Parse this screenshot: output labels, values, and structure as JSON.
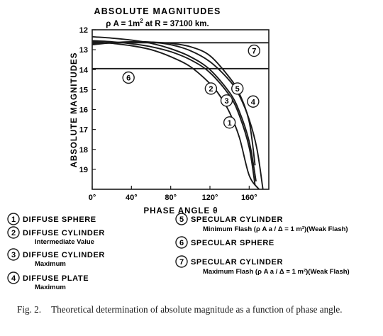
{
  "chart_data": {
    "type": "line",
    "title": "ABSOLUTE MAGNITUDES",
    "subtitle_parts": [
      "ρ A = 1m",
      "2",
      " at R = 37100 km."
    ],
    "xlabel": "PHASE ANGLE θ",
    "ylabel": "ABSOLUTE MAGNITUDES",
    "xlim": [
      0,
      180
    ],
    "ylim": [
      12,
      20
    ],
    "y_inverted": true,
    "x_ticks": [
      "0°",
      "40°",
      "80°",
      "120°",
      "160°"
    ],
    "x_tick_values": [
      0,
      40,
      80,
      120,
      160
    ],
    "y_ticks": [
      "12",
      "13",
      "14",
      "15",
      "16",
      "17",
      "18",
      "19"
    ],
    "y_tick_values": [
      12,
      13,
      14,
      15,
      16,
      17,
      18,
      19
    ],
    "series": [
      {
        "id": "1",
        "x": [
          0,
          20,
          40,
          60,
          80,
          100,
          120,
          130,
          140,
          150,
          160,
          170
        ],
        "y": [
          12.6,
          12.68,
          12.8,
          13.0,
          13.35,
          13.85,
          14.7,
          15.3,
          16.15,
          17.4,
          19.3,
          20.0
        ]
      },
      {
        "id": "2",
        "x": [
          0,
          20,
          40,
          60,
          80,
          100,
          120,
          140,
          150,
          160,
          166
        ],
        "y": [
          12.55,
          12.6,
          12.7,
          12.85,
          13.1,
          13.5,
          14.15,
          15.3,
          16.3,
          17.9,
          19.8
        ]
      },
      {
        "id": "3",
        "x": [
          0,
          20,
          40,
          60,
          80,
          100,
          120,
          140,
          150,
          160,
          167
        ],
        "y": [
          12.35,
          12.42,
          12.52,
          12.68,
          12.95,
          13.35,
          14.0,
          15.15,
          16.1,
          17.6,
          19.6
        ]
      },
      {
        "id": "4",
        "x": [
          0,
          20,
          40,
          60,
          80,
          100,
          120,
          140,
          150,
          160,
          168,
          174
        ],
        "y": [
          12.75,
          12.65,
          12.6,
          12.62,
          12.75,
          13.05,
          13.6,
          14.55,
          15.3,
          16.5,
          18.0,
          20.0
        ]
      },
      {
        "id": "5",
        "x": [
          0,
          20,
          40,
          60,
          80,
          100,
          120,
          140,
          150,
          160,
          166
        ],
        "y": [
          12.7,
          12.66,
          12.62,
          12.62,
          12.68,
          12.85,
          13.3,
          14.4,
          15.2,
          16.6,
          18.8
        ]
      },
      {
        "id": "6",
        "x": [
          0,
          180
        ],
        "y": [
          13.95,
          13.95
        ]
      },
      {
        "id": "7",
        "x": [
          0,
          180
        ],
        "y": [
          12.65,
          12.65
        ]
      }
    ],
    "curve_labels": [
      {
        "text": "1",
        "x": 140,
        "y": 16.65
      },
      {
        "text": "2",
        "x": 121,
        "y": 14.95
      },
      {
        "text": "3",
        "x": 137,
        "y": 15.55
      },
      {
        "text": "4",
        "x": 164,
        "y": 15.6
      },
      {
        "text": "5",
        "x": 148,
        "y": 14.95
      },
      {
        "text": "6",
        "x": 37,
        "y": 14.4
      },
      {
        "text": "7",
        "x": 165,
        "y": 13.05
      }
    ]
  },
  "legend_left": [
    {
      "num": "1",
      "lines": [
        "DIFFUSE SPHERE"
      ]
    },
    {
      "num": "2",
      "lines": [
        "DIFFUSE CYLINDER",
        "Intermediate Value"
      ]
    },
    {
      "num": "3",
      "lines": [
        "DIFFUSE CYLINDER",
        "Maximum"
      ]
    },
    {
      "num": "4",
      "lines": [
        "DIFFUSE PLATE",
        "Maximum"
      ]
    }
  ],
  "legend_right": [
    {
      "num": "5",
      "lines": [
        "SPECULAR CYLINDER",
        "Minimum Flash (ρ A a / Δ = 1 m²)(Weak Flash)"
      ]
    },
    {
      "num": "6",
      "lines": [
        "SPECULAR SPHERE"
      ]
    },
    {
      "num": "7",
      "lines": [
        "SPECULAR CYLINDER",
        "Maximum Flash (ρ A a / Δ = 1 m²)(Weak Flash)"
      ]
    }
  ],
  "caption": {
    "label": "Fig. 2.",
    "text": "Theoretical determination of absolute magnitude as a function of phase angle."
  }
}
